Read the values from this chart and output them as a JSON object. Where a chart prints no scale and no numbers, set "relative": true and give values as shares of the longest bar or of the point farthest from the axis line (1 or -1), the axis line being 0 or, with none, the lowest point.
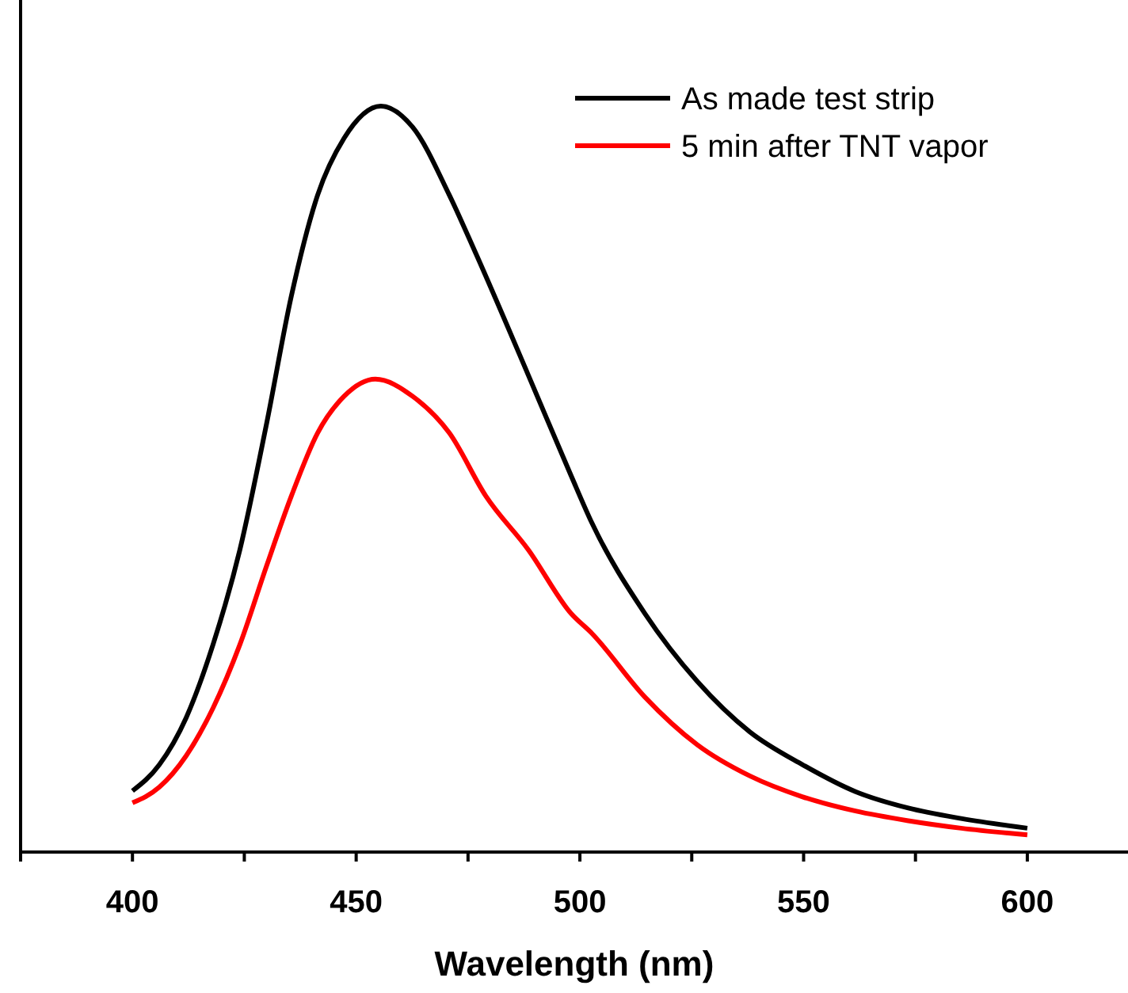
{
  "chart_data": {
    "type": "line",
    "xlabel": "Wavelength (nm)",
    "relative": true,
    "xlim": [
      375,
      622.5
    ],
    "xticks": [
      {
        "value": 375,
        "label": null
      },
      400,
      {
        "value": 425,
        "label": null
      },
      450,
      {
        "value": 475,
        "label": null
      },
      500,
      {
        "value": 525,
        "label": null
      },
      550,
      {
        "value": 575,
        "label": null
      },
      600
    ],
    "legend": "top right",
    "line_style": "solid",
    "marker": "none",
    "grid": false,
    "series": [
      {
        "name": "As made test strip",
        "color": "#000000",
        "x": [
          400,
          406,
          412,
          418,
          424,
          430,
          435.5,
          441.4,
          447.3,
          455.5,
          462.6,
          470.8,
          476.7,
          488.5,
          498,
          502.7,
          514.5,
          526.2,
          538,
          549.8,
          561.6,
          573.4,
          585.2,
          600
        ],
        "values": [
          0.082,
          0.117,
          0.18,
          0.278,
          0.405,
          0.575,
          0.745,
          0.881,
          0.957,
          1,
          0.972,
          0.881,
          0.803,
          0.639,
          0.505,
          0.441,
          0.32,
          0.229,
          0.161,
          0.117,
          0.081,
          0.059,
          0.045,
          0.032
        ]
      },
      {
        "name": "5 min after TNT vapor",
        "color": "#ff0000",
        "x": [
          400,
          406,
          412,
          418,
          424,
          430,
          435.5,
          441.4,
          447.3,
          454.3,
          462.6,
          470.8,
          479,
          488.5,
          498,
          502.7,
          514.5,
          526.2,
          538,
          549.8,
          561.6,
          573.4,
          585.2,
          600
        ],
        "values": [
          0.066,
          0.087,
          0.129,
          0.193,
          0.278,
          0.384,
          0.477,
          0.562,
          0.611,
          0.634,
          0.611,
          0.562,
          0.477,
          0.405,
          0.32,
          0.293,
          0.208,
          0.144,
          0.102,
          0.074,
          0.055,
          0.042,
          0.032,
          0.023
        ]
      }
    ]
  }
}
